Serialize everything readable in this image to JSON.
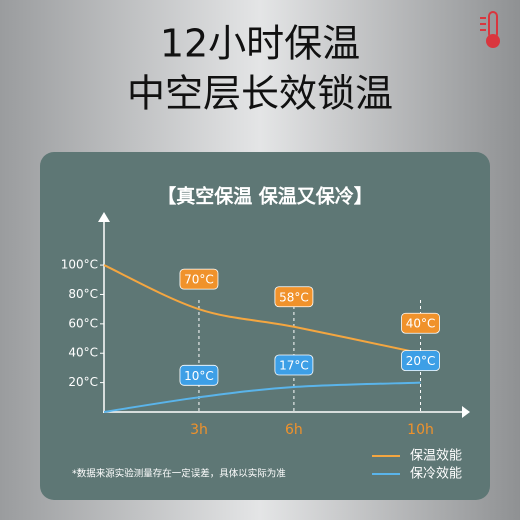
{
  "header": {
    "line1": "12小时保温",
    "line2": "中空层长效锁温"
  },
  "footnote": "*数据来源实验测量存在一定误差，具体以实际为准",
  "chart_data": {
    "type": "line",
    "title": "【真空保温 保温又保冷】",
    "x": [
      0,
      3,
      6,
      10
    ],
    "xlim": [
      0,
      11.5
    ],
    "xticks": [
      {
        "value": 3,
        "label": "3h"
      },
      {
        "value": 6,
        "label": "6h"
      },
      {
        "value": 10,
        "label": "10h"
      }
    ],
    "ylim": [
      0,
      130
    ],
    "yticks": [
      {
        "value": 20,
        "label": "20°C"
      },
      {
        "value": 40,
        "label": "40°C"
      },
      {
        "value": 60,
        "label": "60°C"
      },
      {
        "value": 80,
        "label": "80°C"
      },
      {
        "value": 100,
        "label": "100°C"
      }
    ],
    "grid": false,
    "legend": "lower right",
    "series": [
      {
        "name": "保温效能",
        "color": "#f4a640",
        "label_color": "#f0922b",
        "values": [
          100,
          70,
          58,
          40
        ],
        "value_labels": [
          null,
          "70°C",
          "58°C",
          "40°C"
        ]
      },
      {
        "name": "保冷效能",
        "color": "#5ab4ea",
        "label_color": "#3d9fe6",
        "values": [
          0,
          10,
          17,
          20
        ],
        "value_labels": [
          null,
          "10°C",
          "17°C",
          "20°C"
        ]
      }
    ]
  }
}
